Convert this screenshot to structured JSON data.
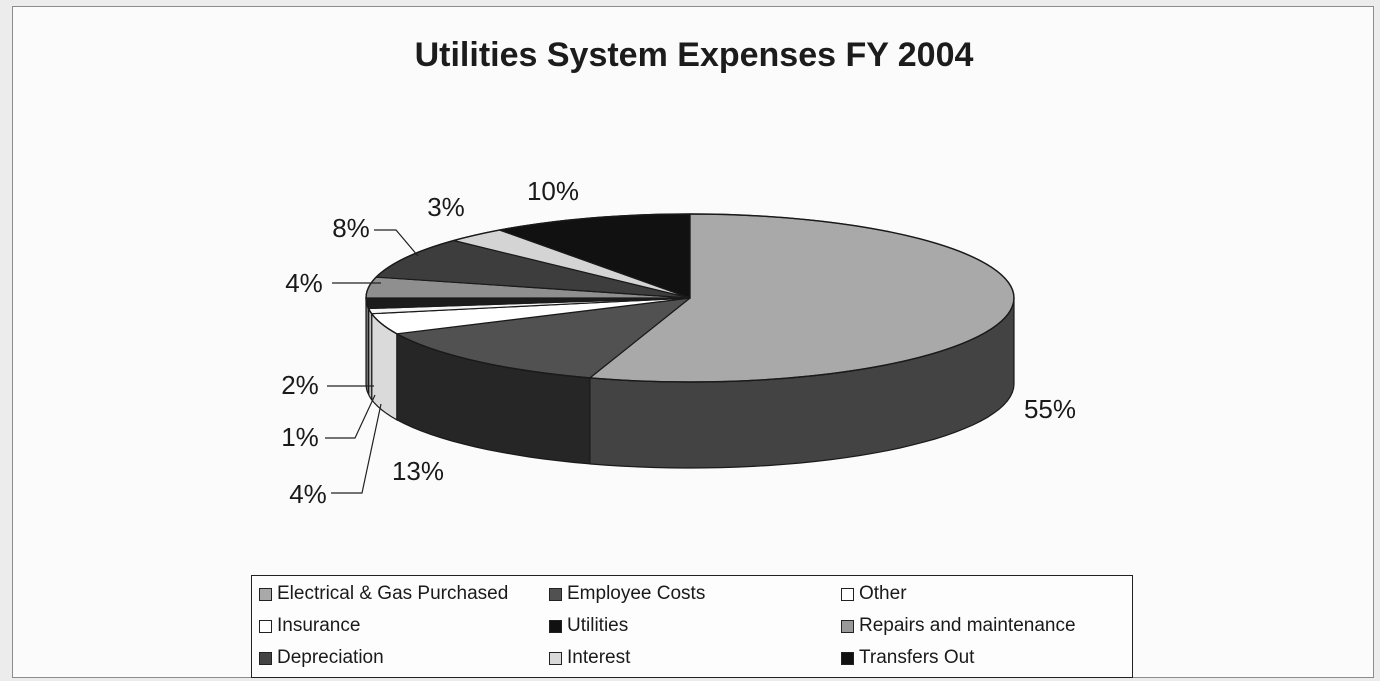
{
  "chart_data": {
    "type": "pie",
    "title": "Utilities System Expenses FY 2004",
    "slices": [
      {
        "label": "Electrical & Gas Purchased",
        "value": 55,
        "data_label": "55%",
        "color": "#a9a9a9",
        "side_color": "#434343"
      },
      {
        "label": "Employee Costs",
        "value": 13,
        "data_label": "13%",
        "color": "#515151",
        "side_color": "#262626"
      },
      {
        "label": "Other",
        "value": 4,
        "data_label": "4%",
        "color": "#ffffff",
        "side_color": "#dadada"
      },
      {
        "label": "Insurance",
        "value": 1,
        "data_label": "1%",
        "color": "#f6f6f6",
        "side_color": "#bdbdbd"
      },
      {
        "label": "Utilities",
        "value": 2,
        "data_label": "2%",
        "color": "#1c1c1c",
        "side_color": "#707070"
      },
      {
        "label": "Repairs and maintenance",
        "value": 4,
        "data_label": "4%",
        "color": "#8f8f8f",
        "side_color": "#5a5a5a"
      },
      {
        "label": "Depreciation",
        "value": 8,
        "data_label": "8%",
        "color": "#3d3d3d",
        "side_color": "#1e1e1e"
      },
      {
        "label": "Interest",
        "value": 3,
        "data_label": "3%",
        "color": "#d4d4d4",
        "side_color": "#999999"
      },
      {
        "label": "Transfers Out",
        "value": 10,
        "data_label": "10%",
        "color": "#111111",
        "side_color": "#0a0a0a"
      }
    ],
    "legend": {
      "placement": "bottom",
      "items": [
        {
          "label": "Electrical & Gas Purchased",
          "color": "#a9a9a9"
        },
        {
          "label": "Employee Costs",
          "color": "#515151"
        },
        {
          "label": "Other",
          "color": "#ffffff"
        },
        {
          "label": "Insurance",
          "color": "#ffffff"
        },
        {
          "label": "Utilities",
          "color": "#111111"
        },
        {
          "label": "Repairs and maintenance",
          "color": "#999999"
        },
        {
          "label": "Depreciation",
          "color": "#444444"
        },
        {
          "label": "Interest",
          "color": "#d9d9d9"
        },
        {
          "label": "Transfers Out",
          "color": "#111111"
        }
      ]
    }
  }
}
